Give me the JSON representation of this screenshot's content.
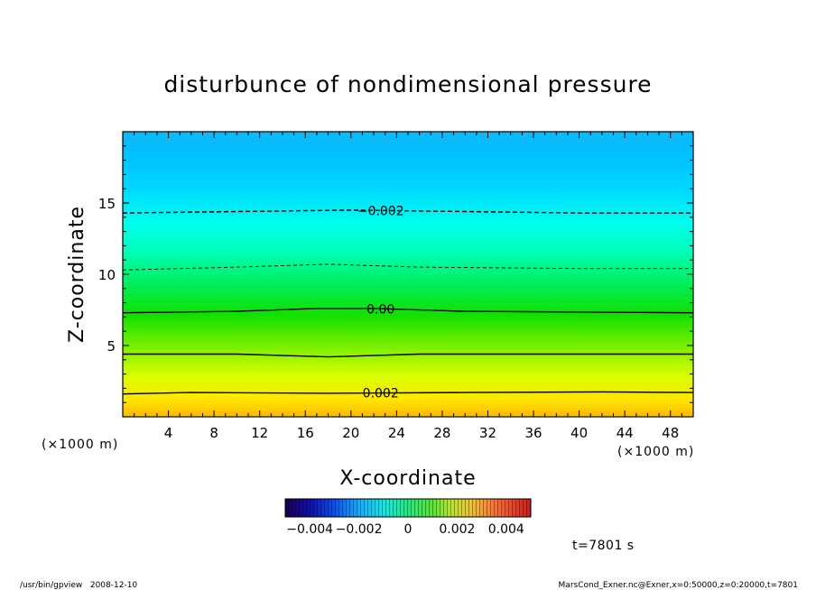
{
  "chart_data": {
    "type": "heatmap",
    "title": "disturbunce of nondimensional pressure",
    "xlabel": "X-coordinate",
    "ylabel": "Z-coordinate",
    "x_unit": "(×1000 m)",
    "y_unit": "(×1000 m)",
    "xlim": [
      0,
      50
    ],
    "ylim": [
      0,
      20
    ],
    "x_ticks": [
      "4",
      "8",
      "12",
      "16",
      "20",
      "24",
      "28",
      "32",
      "36",
      "40",
      "44",
      "48"
    ],
    "y_ticks": [
      "5",
      "10",
      "15"
    ],
    "colormap": {
      "min": -0.005,
      "max": 0.005,
      "tick_labels": [
        "−0.004",
        "−0.002",
        "0",
        "0.002",
        "0.004"
      ],
      "tick_values": [
        -0.004,
        -0.002,
        0,
        0.002,
        0.004
      ],
      "colors": [
        "#2a006a",
        "#0030d0",
        "#00a8ff",
        "#00ffe0",
        "#00ff60",
        "#00e000",
        "#c0ff00",
        "#ffff00",
        "#ffb000",
        "#ff3000",
        "#b00000"
      ]
    },
    "vertical_profile": [
      {
        "z": 0,
        "value": 0.0028
      },
      {
        "z": 1.7,
        "value": 0.002
      },
      {
        "z": 4.5,
        "value": 0.001
      },
      {
        "z": 7.4,
        "value": 0.0
      },
      {
        "z": 10.5,
        "value": -0.001
      },
      {
        "z": 14.4,
        "value": -0.002
      },
      {
        "z": 20,
        "value": -0.0028
      }
    ],
    "contours": [
      {
        "value": 0.002,
        "label": "0.002",
        "style": "solid",
        "points": [
          [
            0,
            1.6
          ],
          [
            6,
            1.7
          ],
          [
            18,
            1.65
          ],
          [
            30,
            1.7
          ],
          [
            42,
            1.75
          ],
          [
            50,
            1.7
          ]
        ]
      },
      {
        "value": 0.001,
        "label": "",
        "style": "solid",
        "points": [
          [
            0,
            4.4
          ],
          [
            10,
            4.4
          ],
          [
            18,
            4.2
          ],
          [
            26,
            4.4
          ],
          [
            40,
            4.4
          ],
          [
            50,
            4.4
          ]
        ]
      },
      {
        "value": 0.0,
        "label": "0.00",
        "style": "solid",
        "points": [
          [
            0,
            7.3
          ],
          [
            10,
            7.4
          ],
          [
            17,
            7.6
          ],
          [
            22,
            7.6
          ],
          [
            30,
            7.4
          ],
          [
            50,
            7.3
          ]
        ]
      },
      {
        "value": -0.001,
        "label": "",
        "style": "dashed",
        "points": [
          [
            0,
            10.3
          ],
          [
            10,
            10.5
          ],
          [
            18,
            10.7
          ],
          [
            26,
            10.5
          ],
          [
            40,
            10.4
          ],
          [
            50,
            10.4
          ]
        ]
      },
      {
        "value": -0.002,
        "label": "−0.002",
        "style": "dashed",
        "points": [
          [
            0,
            14.3
          ],
          [
            10,
            14.4
          ],
          [
            20,
            14.5
          ],
          [
            30,
            14.4
          ],
          [
            40,
            14.3
          ],
          [
            50,
            14.3
          ]
        ]
      }
    ],
    "time_label": "t=7801 s"
  },
  "footer": {
    "left": "/usr/bin/gpview   2008-12-10",
    "right": "MarsCond_Exner.nc@Exner,x=0:50000,z=0:20000,t=7801"
  }
}
